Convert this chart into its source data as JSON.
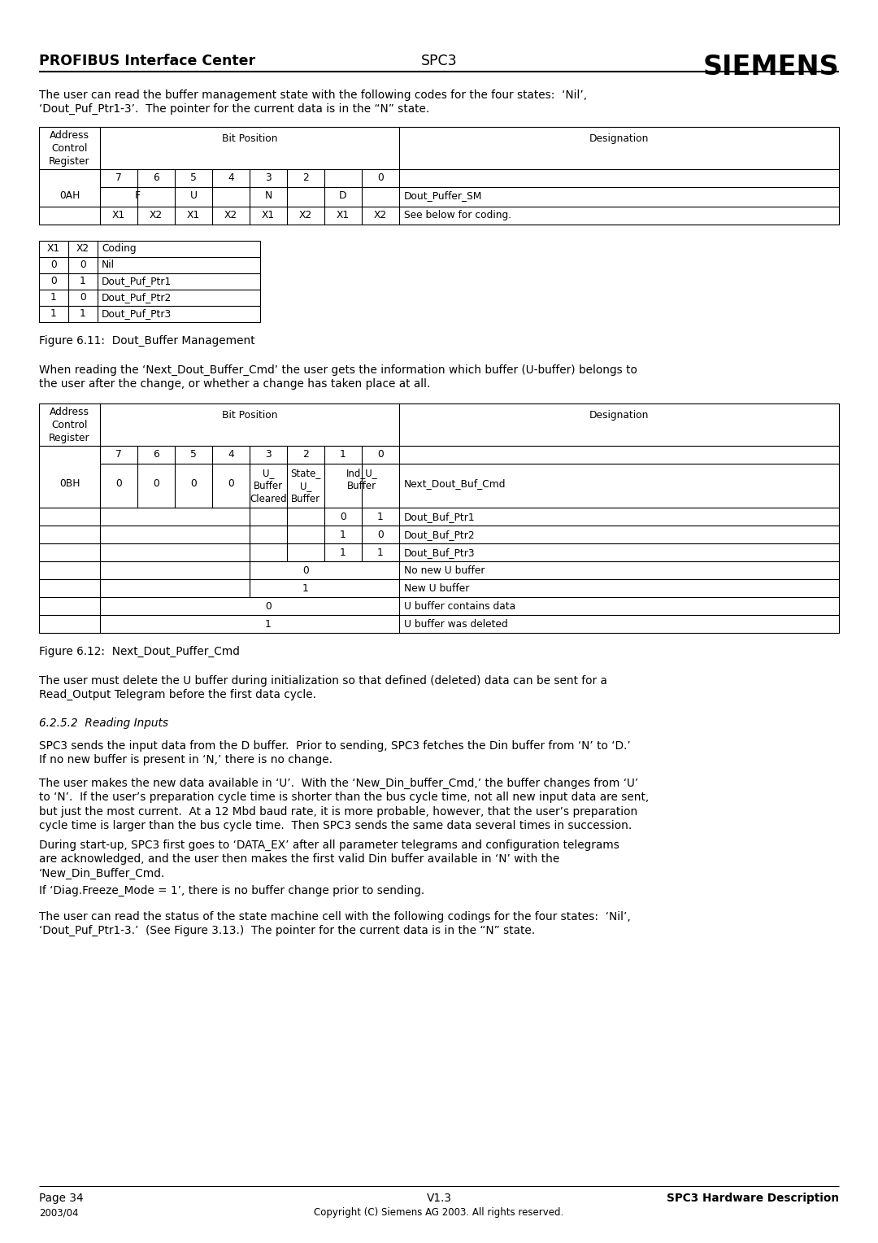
{
  "header_left": "PROFIBUS Interface Center",
  "header_center": "SPC3",
  "header_right": "SIEMENS",
  "footer_page": "Page 34",
  "footer_version": "V1.3",
  "footer_title": "SPC3 Hardware Description",
  "footer_year": "2003/04",
  "footer_copyright": "Copyright (C) Siemens AG 2003. All rights reserved.",
  "para1": "The user can read the buffer management state with the following codes for the four states:  ‘Nil’,\n‘Dout_Puf_Ptr1-3’.  The pointer for the current data is in the “N” state.",
  "table2_rows": [
    [
      "0",
      "0",
      "Nil"
    ],
    [
      "0",
      "1",
      "Dout_Puf_Ptr1"
    ],
    [
      "1",
      "0",
      "Dout_Puf_Ptr2"
    ],
    [
      "1",
      "1",
      "Dout_Puf_Ptr3"
    ]
  ],
  "fig1_caption": "Figure 6.11:  Dout_Buffer Management",
  "para2": "When reading the ‘Next_Dout_Buffer_Cmd’ the user gets the information which buffer (U-buffer) belongs to\nthe user after the change, or whether a change has taken place at all.",
  "fig2_caption": "Figure 6.12:  Next_Dout_Puffer_Cmd",
  "para3": "The user must delete the U buffer during initialization so that defined (deleted) data can be sent for a\nRead_Output Telegram before the first data cycle.",
  "section_heading": "6.2.5.2  Reading Inputs",
  "para4": "SPC3 sends the input data from the D buffer.  Prior to sending, SPC3 fetches the Din buffer from ‘N’ to ‘D.’\nIf no new buffer is present in ‘N,’ there is no change.",
  "para5": "The user makes the new data available in ‘U’.  With the ‘New_Din_buffer_Cmd,’ the buffer changes from ‘U’\nto ‘N’.  If the user’s preparation cycle time is shorter than the bus cycle time, not all new input data are sent,\nbut just the most current.  At a 12 Mbd baud rate, it is more probable, however, that the user’s preparation\ncycle time is larger than the bus cycle time.  Then SPC3 sends the same data several times in succession.",
  "para6": "During start-up, SPC3 first goes to ‘DATA_EX’ after all parameter telegrams and configuration telegrams\nare acknowledged, and the user then makes the first valid Din buffer available in ‘N’ with the\n‘New_Din_Buffer_Cmd.",
  "para7": "If ‘Diag.Freeze_Mode = 1’, there is no buffer change prior to sending.",
  "para8": "The user can read the status of the state machine cell with the following codings for the four states:  ‘Nil’,\n‘Dout_Puf_Ptr1-3.’  (See Figure 3.13.)  The pointer for the current data is in the “N” state."
}
